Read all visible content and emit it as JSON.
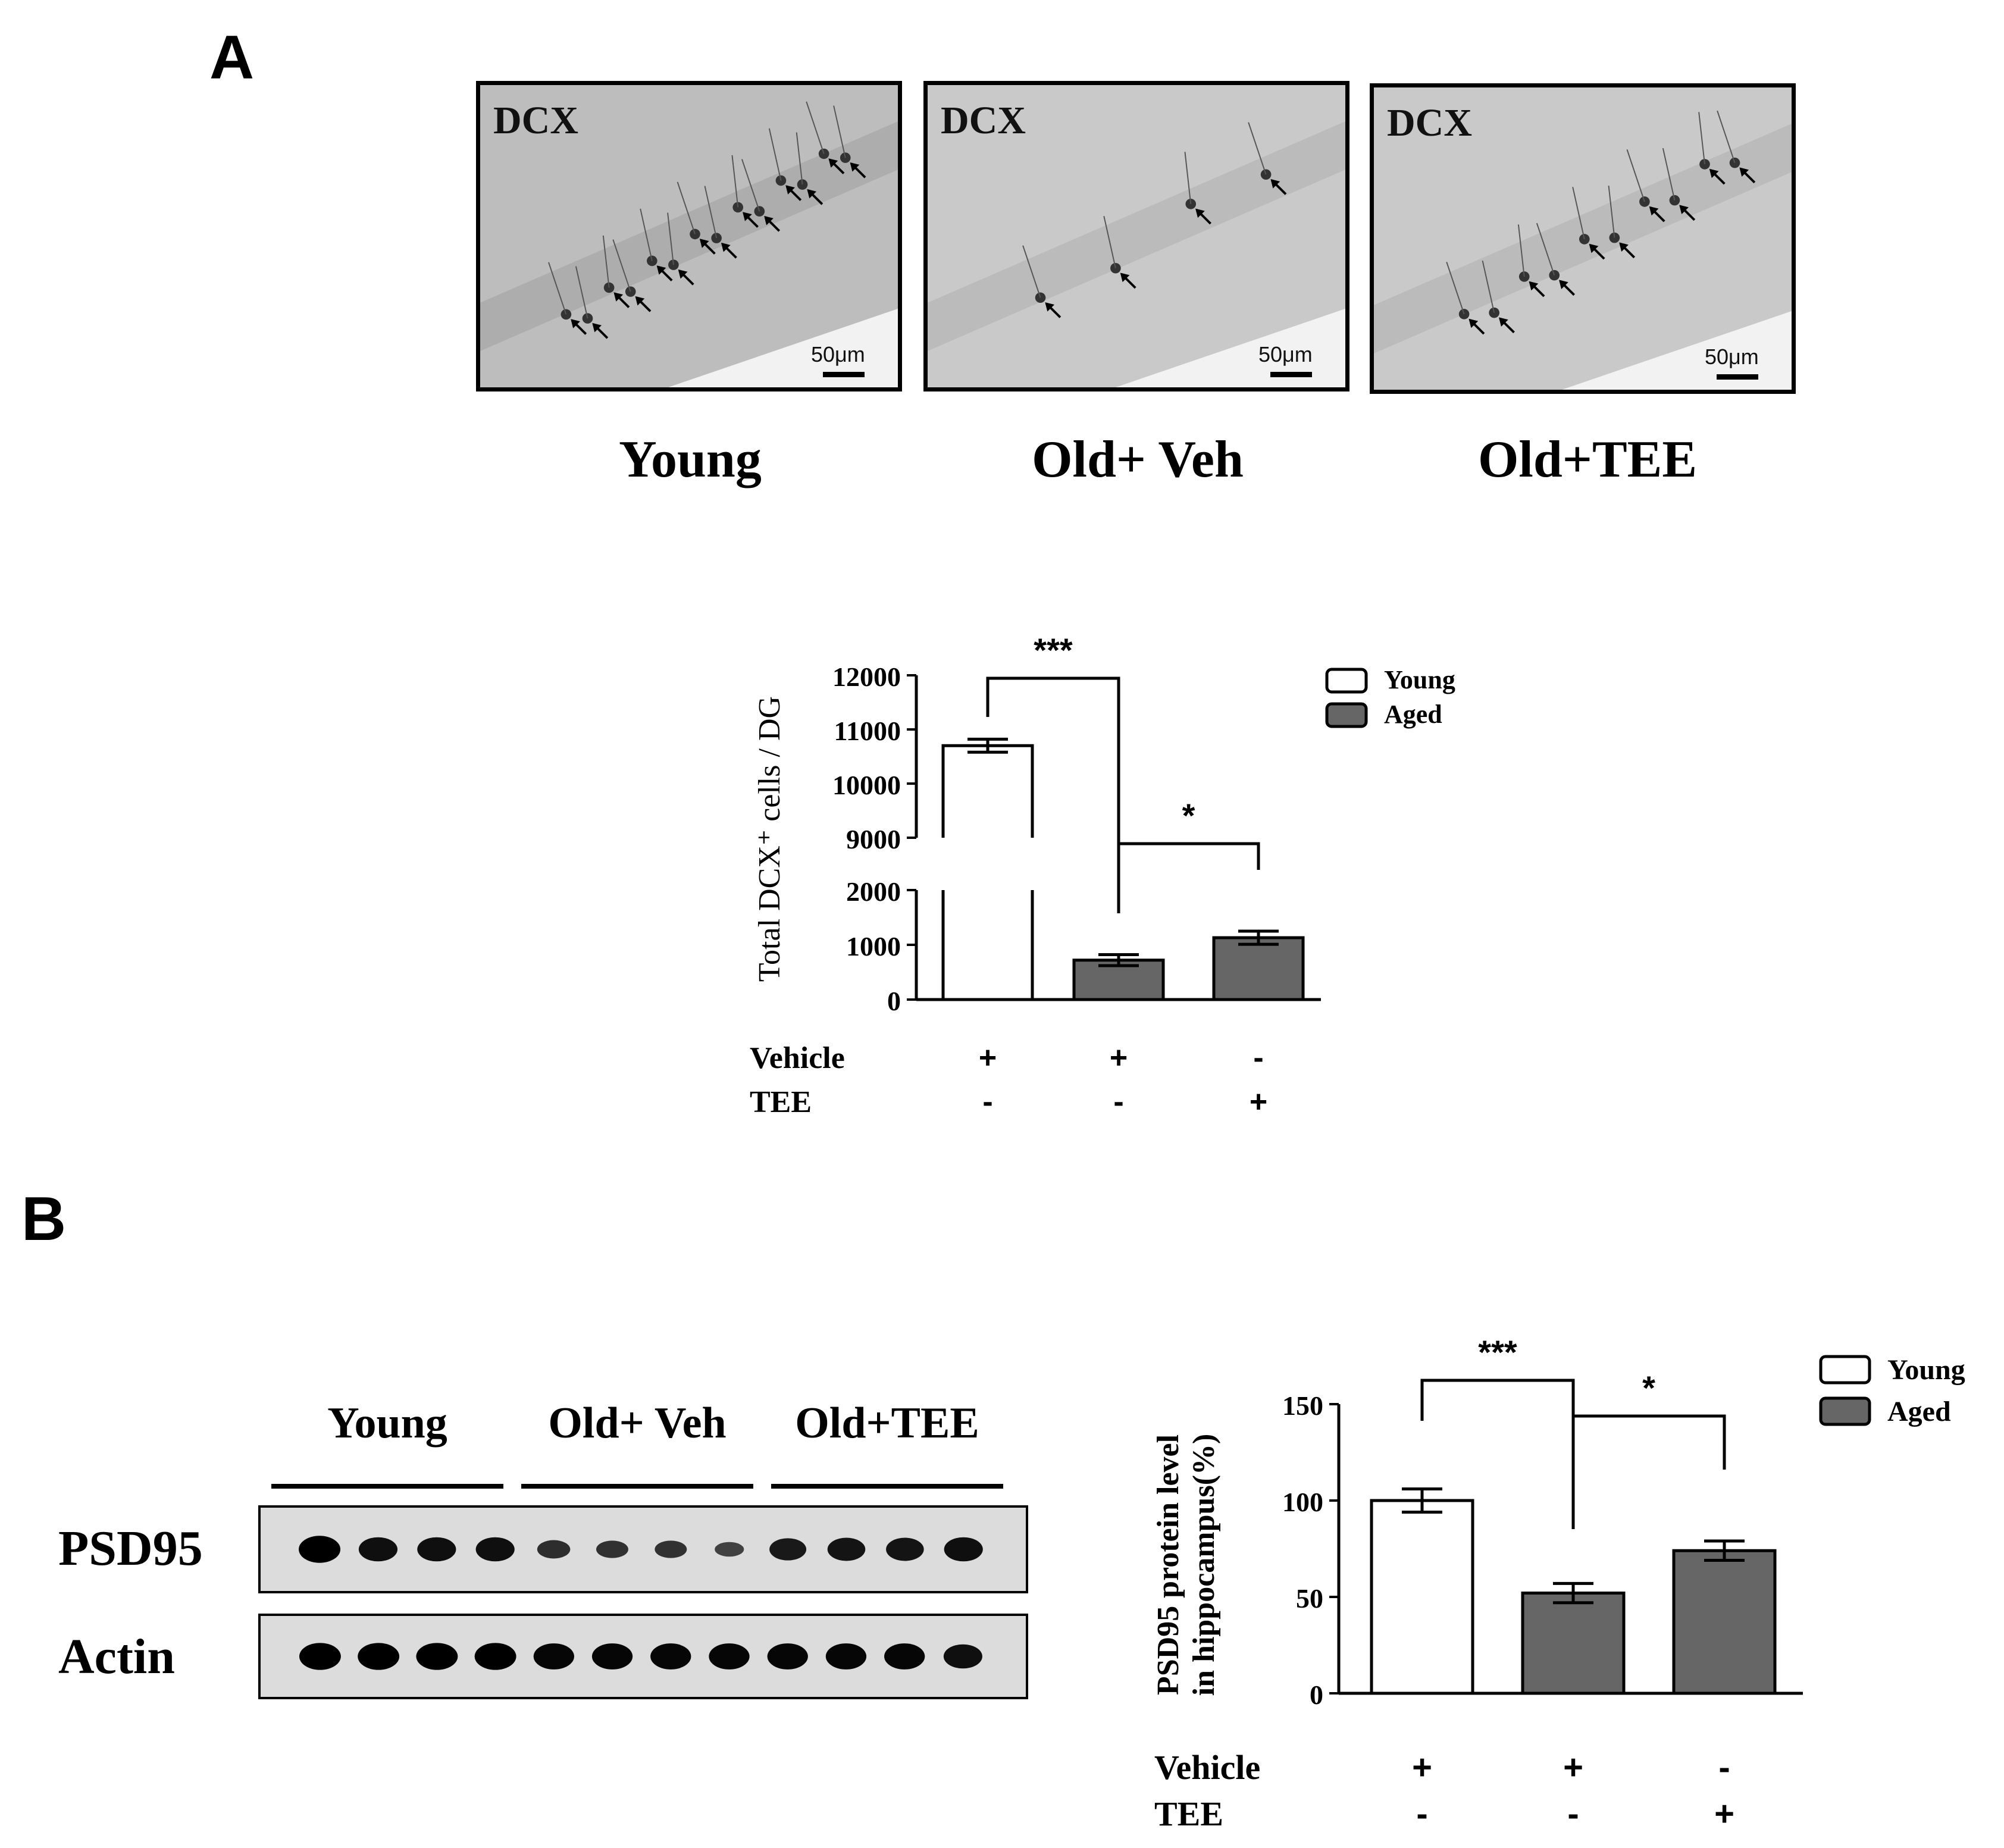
{
  "panelA": {
    "letter": "A",
    "images": [
      {
        "stain": "DCX",
        "scale": "50μm",
        "group": "Young"
      },
      {
        "stain": "DCX",
        "scale": "50μm",
        "group": "Old+ Veh"
      },
      {
        "stain": "DCX",
        "scale": "50μm",
        "group": "Old+TEE"
      }
    ]
  },
  "panelB": {
    "letter": "B",
    "blot": {
      "groups": [
        "Young",
        "Old+ Veh",
        "Old+TEE"
      ],
      "rows": [
        "PSD95",
        "Actin"
      ],
      "psd95_intensity": [
        1.0,
        0.85,
        0.85,
        0.85,
        0.55,
        0.5,
        0.5,
        0.35,
        0.75,
        0.8,
        0.8,
        0.85
      ],
      "actin_intensity": [
        1,
        1,
        1,
        1,
        0.95,
        0.95,
        0.95,
        0.95,
        0.95,
        0.95,
        0.95,
        0.85
      ]
    }
  },
  "chart_data": [
    {
      "type": "bar",
      "ylabel": "Total DCX⁺ cells / DG",
      "axis_break": true,
      "ylim_lower": [
        0,
        2000
      ],
      "ylim_upper": [
        9000,
        12000
      ],
      "yticks": [
        "0",
        "1000",
        "2000",
        "9000",
        "10000",
        "11000",
        "12000"
      ],
      "categories": [
        "Young",
        "Old+Veh",
        "Old+TEE"
      ],
      "values": [
        10700,
        720,
        1130
      ],
      "errors": [
        120,
        100,
        120
      ],
      "fills": [
        "#ffffff",
        "#666666",
        "#666666"
      ],
      "legend": [
        {
          "name": "Young",
          "color": "#ffffff"
        },
        {
          "name": "Aged",
          "color": "#666666"
        }
      ],
      "treatments": {
        "Vehicle": [
          "+",
          "+",
          "-"
        ],
        "TEE": [
          "-",
          "-",
          "+"
        ]
      },
      "significance": [
        {
          "pair": [
            0,
            1
          ],
          "label": "***"
        },
        {
          "pair": [
            1,
            2
          ],
          "label": "*"
        }
      ]
    },
    {
      "type": "bar",
      "ylabel_lines": [
        "PSD95 protein level",
        "in hippocampus(%)"
      ],
      "ylim": [
        0,
        150
      ],
      "yticks": [
        "0",
        "50",
        "100",
        "150"
      ],
      "categories": [
        "Young",
        "Old+Veh",
        "Old+TEE"
      ],
      "values": [
        100,
        52,
        74
      ],
      "errors": [
        6,
        5,
        5
      ],
      "fills": [
        "#ffffff",
        "#666666",
        "#666666"
      ],
      "legend": [
        {
          "name": "Young",
          "color": "#ffffff"
        },
        {
          "name": "Aged",
          "color": "#666666"
        }
      ],
      "treatments": {
        "Vehicle": [
          "+",
          "+",
          "-"
        ],
        "TEE": [
          "-",
          "-",
          "+"
        ]
      },
      "significance": [
        {
          "pair": [
            0,
            1
          ],
          "label": "***"
        },
        {
          "pair": [
            1,
            2
          ],
          "label": "*"
        }
      ]
    }
  ]
}
